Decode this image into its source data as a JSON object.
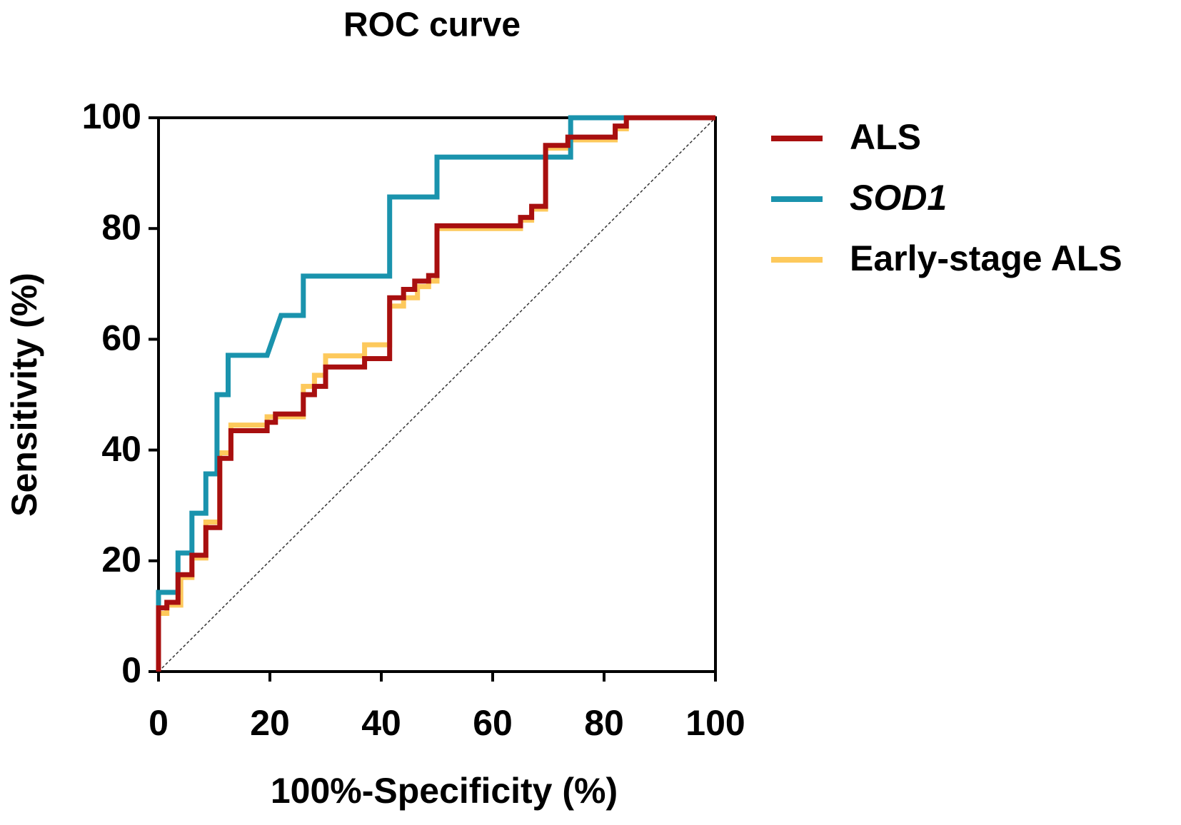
{
  "chart_data": {
    "type": "line",
    "title": "ROC curve",
    "x_label": "100%-Specificity (%)",
    "y_label": "Sensitivity (%)",
    "xlim": [
      0,
      100
    ],
    "ylim": [
      0,
      100
    ],
    "xticks": [
      0,
      20,
      40,
      60,
      80,
      100
    ],
    "yticks": [
      0,
      20,
      40,
      60,
      80,
      100
    ],
    "legend": "right",
    "step": true,
    "series": [
      {
        "name": "Early-stage ALS",
        "color": "#fdc95c",
        "x": [
          0,
          0,
          1.5,
          1.5,
          4,
          4,
          6,
          6,
          8.5,
          8.5,
          11,
          11,
          13,
          13,
          19.5,
          19.5,
          26,
          26,
          28,
          28,
          30,
          30,
          37,
          37,
          41.5,
          41.5,
          44,
          44,
          46.5,
          46.5,
          48.5,
          48.5,
          50,
          50,
          65,
          65,
          67,
          67,
          69.5,
          69.5,
          73.5,
          73.5,
          82,
          82,
          84,
          84,
          100
        ],
        "values": [
          0,
          10.5,
          10.5,
          12,
          12,
          17,
          17,
          20.5,
          20.5,
          27,
          27,
          39.5,
          39.5,
          44.5,
          44.5,
          46,
          46,
          51.5,
          51.5,
          53.5,
          53.5,
          57,
          57,
          59,
          59,
          66,
          66,
          67.5,
          67.5,
          69.5,
          69.5,
          70.5,
          70.5,
          80,
          80,
          81.5,
          81.5,
          83.5,
          83.5,
          94.5,
          94.5,
          96,
          96,
          98,
          98,
          100,
          100
        ]
      },
      {
        "name": "SOD1",
        "color": "#1a93ad",
        "x": [
          0,
          0,
          3.5,
          3.5,
          6,
          6,
          8.5,
          8.5,
          10.5,
          10.5,
          12.5,
          12.5,
          19.5,
          22,
          26,
          26,
          41.5,
          41.5,
          50,
          50,
          74,
          74,
          84
        ],
        "values": [
          0,
          14.3,
          14.3,
          21.4,
          21.4,
          28.6,
          28.6,
          35.7,
          35.7,
          50,
          50,
          57.1,
          57.1,
          64.3,
          64.3,
          71.4,
          71.4,
          85.7,
          85.7,
          92.9,
          92.9,
          100,
          100
        ]
      },
      {
        "name": "ALS",
        "color": "#a80f0f",
        "x": [
          0,
          0,
          1.5,
          1.5,
          3.5,
          3.5,
          6,
          6,
          8.5,
          8.5,
          11,
          11,
          13,
          13,
          19.5,
          19.5,
          21,
          21,
          26,
          26,
          28,
          28,
          30,
          30,
          37,
          37,
          41.5,
          41.5,
          44,
          44,
          46,
          46,
          48.5,
          48.5,
          50,
          50,
          65,
          65,
          67,
          67,
          69.5,
          69.5,
          73.5,
          73.5,
          82,
          82,
          84,
          84,
          100
        ],
        "values": [
          0,
          11.5,
          11.5,
          12.5,
          12.5,
          17.5,
          17.5,
          21,
          21,
          26,
          26,
          38.5,
          38.5,
          43.5,
          43.5,
          45,
          45,
          46.5,
          46.5,
          50,
          50,
          51.5,
          51.5,
          55,
          55,
          56.5,
          56.5,
          67.5,
          67.5,
          69,
          69,
          70.5,
          70.5,
          71.5,
          71.5,
          80.5,
          80.5,
          82,
          82,
          84,
          84,
          95,
          95,
          96.5,
          96.5,
          98.5,
          98.5,
          100,
          100
        ]
      }
    ],
    "legend_order": [
      "ALS",
      "SOD1",
      "Early-stage ALS"
    ]
  }
}
